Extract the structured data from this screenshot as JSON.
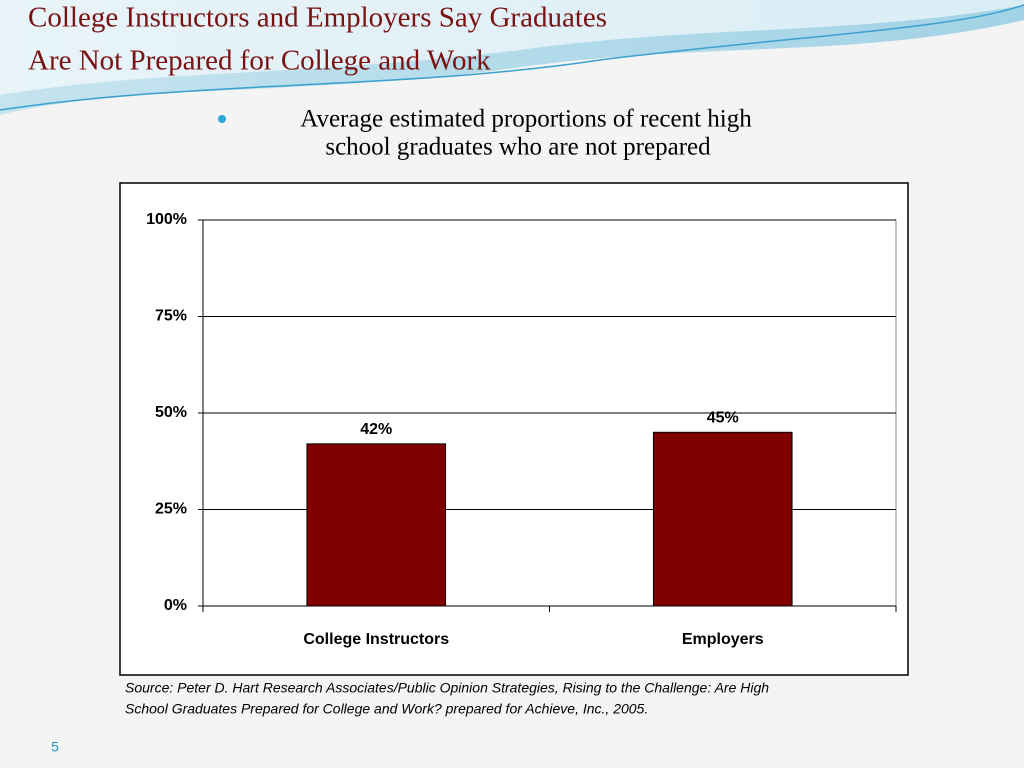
{
  "title_lines": [
    "College Instructors and Employers Say Graduates",
    "Are Not Prepared for College and Work"
  ],
  "bullet_lines": [
    "Average estimated proportions of recent high",
    "school graduates who are not prepared"
  ],
  "chart_data": {
    "type": "bar",
    "categories": [
      "College Instructors",
      "Employers"
    ],
    "values": [
      42,
      45
    ],
    "value_labels": [
      "42%",
      "45%"
    ],
    "color": "#800000",
    "ylim": [
      0,
      100
    ],
    "yticks": [
      {
        "value": 0,
        "label": "0%"
      },
      {
        "value": 25,
        "label": "25%"
      },
      {
        "value": 50,
        "label": "50%"
      },
      {
        "value": 75,
        "label": "75%"
      },
      {
        "value": 100,
        "label": "100%"
      }
    ],
    "grid": true
  },
  "source_lines": [
    "Source: Peter D. Hart Research Associates/Public Opinion Strategies, Rising to the Challenge: Are High",
    "School Graduates Prepared for College and Work? prepared for Achieve, Inc., 2005."
  ],
  "page_number": "5"
}
